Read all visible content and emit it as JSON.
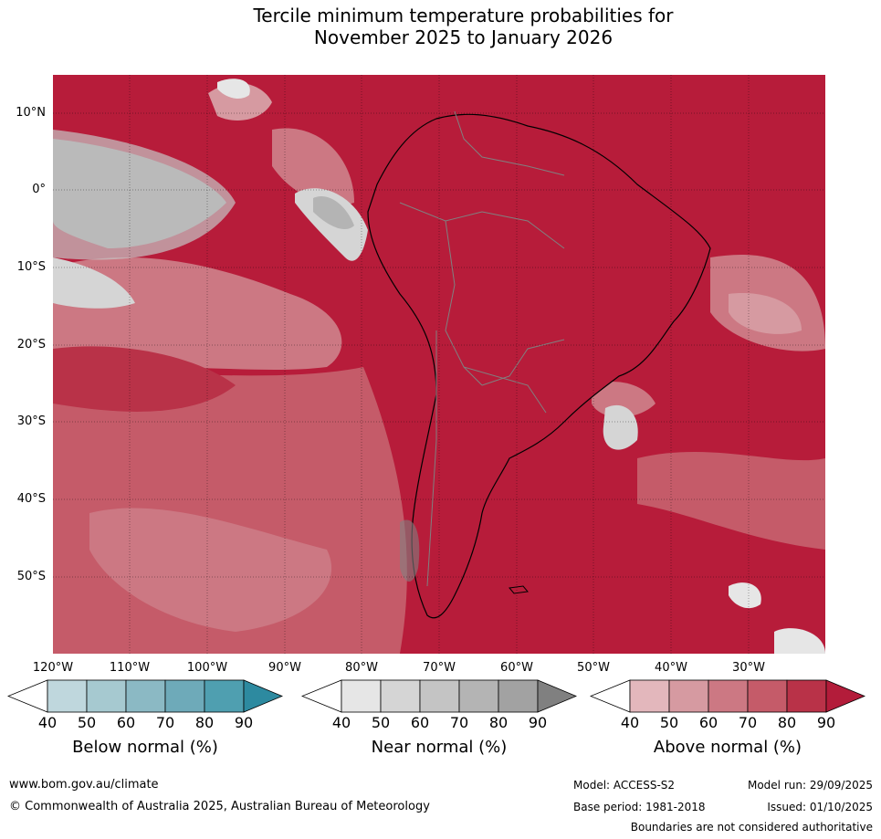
{
  "title": {
    "line1": "Tercile minimum temperature probabilities for",
    "line2": "November 2025 to January 2026"
  },
  "map": {
    "region": "South America",
    "lat_labels": [
      "10°N",
      "0°",
      "10°S",
      "20°S",
      "30°S",
      "40°S",
      "50°S"
    ],
    "lon_labels": [
      "120°W",
      "110°W",
      "100°W",
      "90°W",
      "80°W",
      "70°W",
      "60°W",
      "50°W",
      "40°W",
      "30°W"
    ]
  },
  "legend": {
    "ticks": [
      "40",
      "50",
      "60",
      "70",
      "80",
      "90"
    ],
    "below": {
      "title": "Below normal (%)",
      "colors": [
        "#ffffff",
        "#bfd7dd",
        "#a6c9d0",
        "#8bb9c4",
        "#6eaab9",
        "#4f9fb0",
        "#2d8aa0"
      ]
    },
    "near": {
      "title": "Near normal (%)",
      "colors": [
        "#ffffff",
        "#e6e6e6",
        "#d5d5d5",
        "#c4c4c4",
        "#b4b4b4",
        "#a2a2a2",
        "#808080"
      ]
    },
    "above": {
      "title": "Above normal (%)",
      "colors": [
        "#ffffff",
        "#e3b7bc",
        "#d69aa1",
        "#cc7883",
        "#c55b69",
        "#b93248",
        "#b31c3a"
      ]
    }
  },
  "footer": {
    "url": "www.bom.gov.au/climate",
    "copyright": "© Commonwealth of Australia 2025, Australian Bureau of Meteorology",
    "model": "Model: ACCESS-S2",
    "base_period": "Base period: 1981-2018",
    "model_run": "Model run: 29/09/2025",
    "issued": "Issued: 01/10/2025",
    "disclaimer": "Boundaries are not considered authoritative"
  }
}
